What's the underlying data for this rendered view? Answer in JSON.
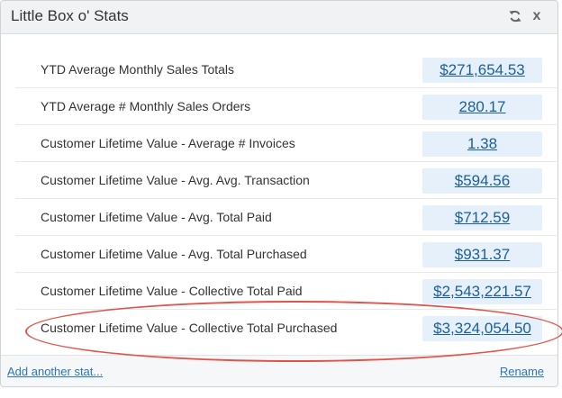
{
  "widget": {
    "title": "Little Box o' Stats",
    "refresh_icon": "refresh-icon",
    "close_icon": "x"
  },
  "stats": [
    {
      "label": "YTD Average Monthly Sales Totals",
      "value": "$271,654.53"
    },
    {
      "label": "YTD Average # Monthly Sales Orders",
      "value": "280.17"
    },
    {
      "label": "Customer Lifetime Value - Average # Invoices",
      "value": "1.38"
    },
    {
      "label": "Customer Lifetime Value - Avg. Avg. Transaction",
      "value": "$594.56"
    },
    {
      "label": "Customer Lifetime Value - Avg. Total Paid",
      "value": "$712.59"
    },
    {
      "label": "Customer Lifetime Value - Avg. Total Purchased",
      "value": "$931.37"
    },
    {
      "label": "Customer Lifetime Value - Collective Total Paid",
      "value": "$2,543,221.57"
    },
    {
      "label": "Customer Lifetime Value - Collective Total Purchased",
      "value": "$3,324,054.50"
    }
  ],
  "footer": {
    "add_link": "Add another stat...",
    "rename_link": "Rename"
  },
  "colors": {
    "highlight": "#e0554a",
    "value_bg": "#e5f0fa",
    "link": "#2b75bc"
  }
}
